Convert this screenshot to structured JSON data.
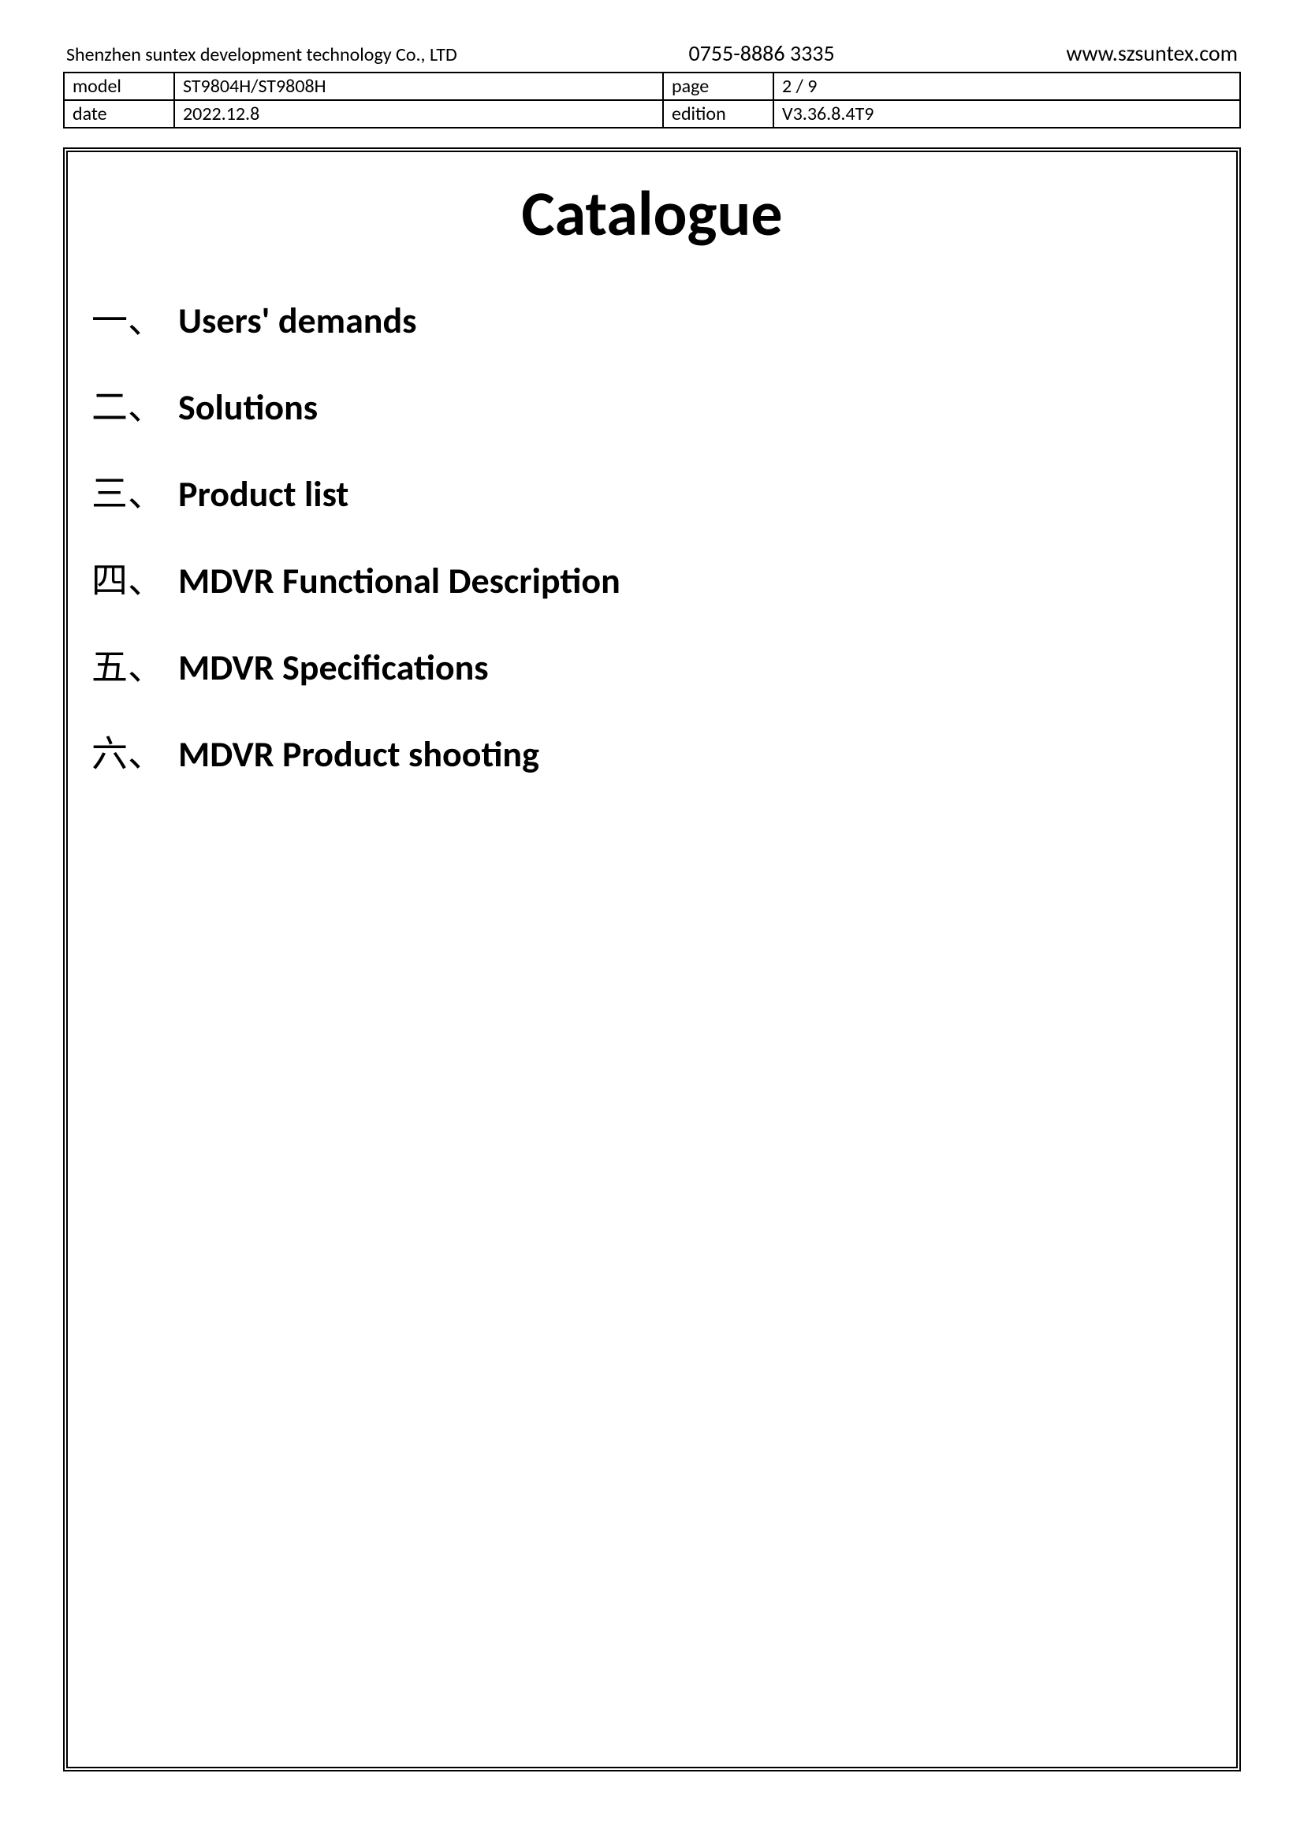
{
  "header": {
    "company": "Shenzhen suntex development technology Co., LTD",
    "phone": "0755-8886 3335",
    "website": "www.szsuntex.com"
  },
  "info_table": {
    "rows": [
      {
        "label1": "model",
        "value1": "ST9804H/ST9808H",
        "label2": "page",
        "value2": "2 / 9"
      },
      {
        "label1": "date",
        "value1": "2022.12.8",
        "label2": "edition",
        "value2": "V3.36.8.4T9"
      }
    ]
  },
  "catalogue": {
    "title": "Catalogue",
    "items": [
      {
        "number": "一、",
        "text": "Users' demands"
      },
      {
        "number": "二、",
        "text": "Solutions"
      },
      {
        "number": "三、",
        "text": "Product list"
      },
      {
        "number": "四、",
        "text": "MDVR Functional Description"
      },
      {
        "number": "五、",
        "text": "MDVR Specifications"
      },
      {
        "number": "六、",
        "text": "MDVR Product shooting"
      }
    ]
  }
}
